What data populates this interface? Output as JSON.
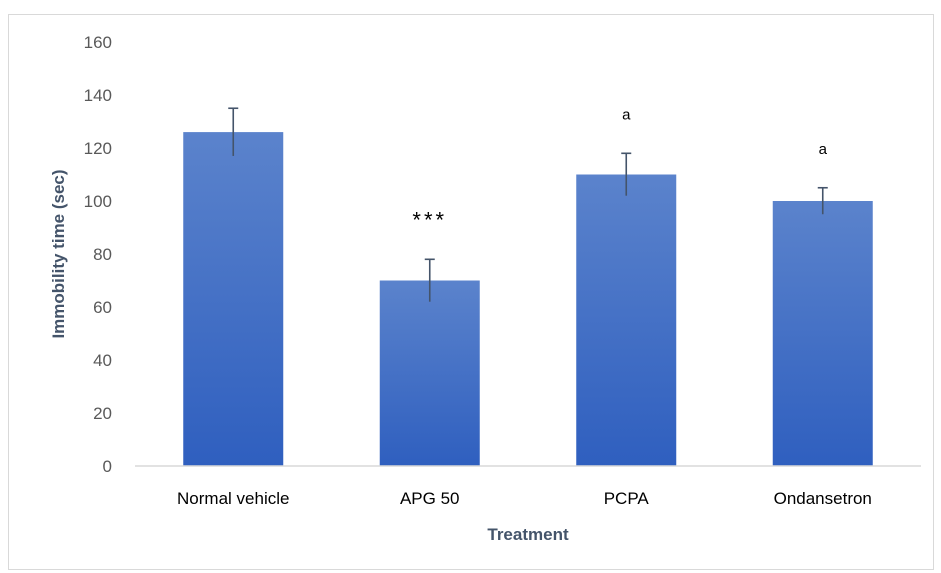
{
  "chart_data": {
    "type": "bar",
    "title": "",
    "xlabel": "Treatment",
    "ylabel": "Immobility time (sec)",
    "categories": [
      "Normal vehicle",
      "APG 50",
      "PCPA",
      "Ondansetron"
    ],
    "values": [
      126,
      70,
      110,
      100
    ],
    "errors": [
      9,
      8,
      8,
      5
    ],
    "annotations": [
      "",
      "***",
      "a",
      "a"
    ],
    "ylim": [
      0,
      160
    ],
    "yticks": [
      0,
      20,
      40,
      60,
      80,
      100,
      120,
      140,
      160
    ],
    "grid": false,
    "legend": "none",
    "colors": {
      "bar_top": "#5b83cc",
      "bar_bottom": "#2f5fbf",
      "error_bar": "#44546a",
      "axis_line": "#d9d9d9"
    }
  }
}
